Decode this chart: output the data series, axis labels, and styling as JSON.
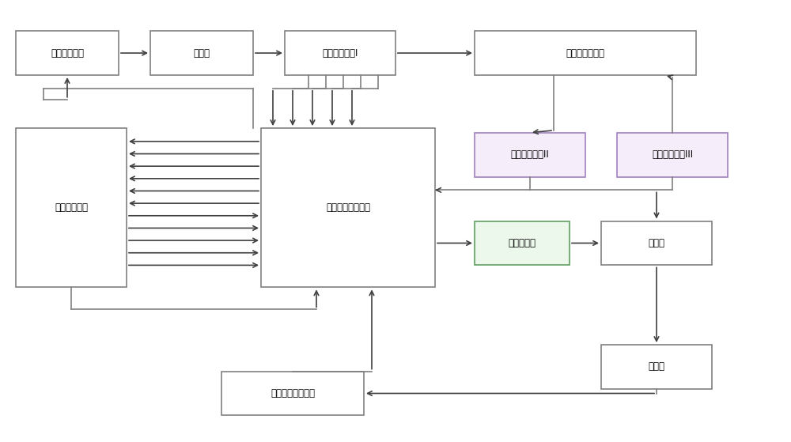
{
  "bg_color": "#ffffff",
  "line_color": "#808080",
  "arrow_color": "#404040",
  "boxes": {
    "磁控管调制器": [
      0.02,
      0.83,
      0.13,
      0.1
    ],
    "磁控管": [
      0.19,
      0.83,
      0.13,
      0.1
    ],
    "微波检测电路I": [
      0.36,
      0.83,
      0.14,
      0.1
    ],
    "反馈式微波系统": [
      0.6,
      0.83,
      0.28,
      0.1
    ],
    "微波检测电路II": [
      0.6,
      0.6,
      0.14,
      0.1
    ],
    "微波检测电路III": [
      0.78,
      0.6,
      0.14,
      0.1
    ],
    "电子枪调制器": [
      0.02,
      0.35,
      0.14,
      0.36
    ],
    "数字信号处理系统": [
      0.33,
      0.35,
      0.22,
      0.36
    ],
    "栅控电子枪": [
      0.6,
      0.4,
      0.12,
      0.1
    ],
    "加速管": [
      0.76,
      0.4,
      0.14,
      0.1
    ],
    "自动剂量控制系统": [
      0.28,
      0.06,
      0.18,
      0.1
    ],
    "治疗头": [
      0.76,
      0.12,
      0.14,
      0.1
    ]
  },
  "box_colors": {
    "磁控管调制器": "#ffffff",
    "磁控管": "#ffffff",
    "微波检测电路I": "#ffffff",
    "反馈式微波系统": "#ffffff",
    "微波检测电路II": "#f5eefa",
    "微波检测电路III": "#f5eefa",
    "电子枪调制器": "#ffffff",
    "数字信号处理系统": "#ffffff",
    "栅控电子枪": "#edf8ed",
    "加速管": "#ffffff",
    "自动剂量控制系统": "#ffffff",
    "治疗头": "#ffffff"
  },
  "box_edge_colors": {
    "磁控管调制器": "#808080",
    "磁控管": "#808080",
    "微波检测电路I": "#808080",
    "反馈式微波系统": "#808080",
    "微波检测电路II": "#a080c0",
    "微波检测电路III": "#a080c0",
    "电子枪调制器": "#808080",
    "数字信号处理系统": "#808080",
    "栅控电子枪": "#60a060",
    "加速管": "#808080",
    "自动剂量控制系统": "#808080",
    "治疗头": "#808080"
  },
  "lw": 1.2,
  "arrow_ms": 10
}
